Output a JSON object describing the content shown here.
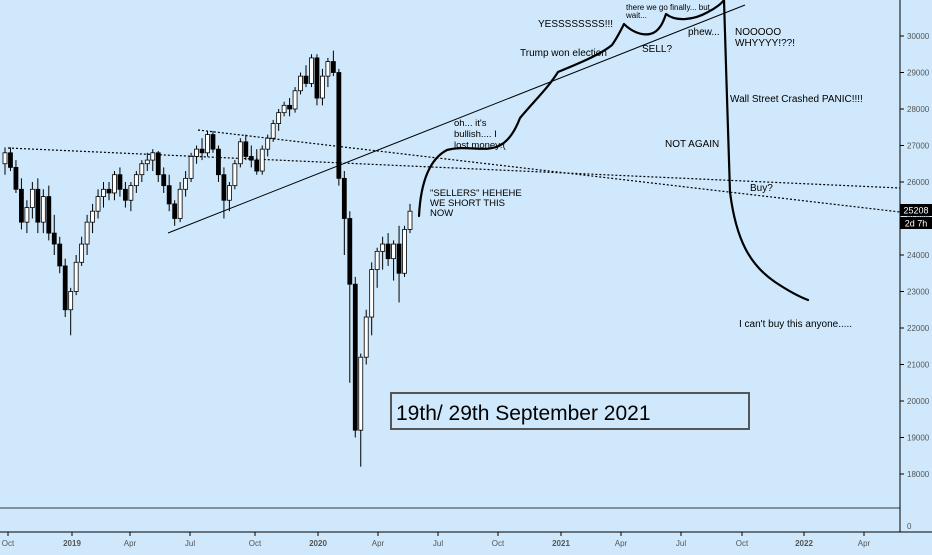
{
  "colors": {
    "background": "#cfe8fb",
    "candle_up": "#ffffff",
    "candle_down": "#000000",
    "wick": "#000000",
    "projection": "#000000",
    "price_label_bg": "#000000",
    "price_label_text": "#ffffff",
    "axis_text": "#555555"
  },
  "chart_data": {
    "type": "candlestick",
    "y_axis": {
      "ticks": [
        "30000",
        "29000",
        "28000",
        "27000",
        "26000",
        "25000",
        "24000",
        "23000",
        "22000",
        "21000",
        "20000",
        "19000",
        "18000"
      ],
      "zero_tick": "0",
      "range": [
        17200,
        30900
      ]
    },
    "x_axis": {
      "ticks": [
        "Oct",
        "2019",
        "Apr",
        "Jul",
        "Oct",
        "2020",
        "Apr",
        "Jul",
        "Oct",
        "2021",
        "Apr",
        "Jul",
        "Oct",
        "2022",
        "Apr"
      ]
    },
    "price_label": "25208",
    "countdown_label": "2d 7h",
    "candles": [
      {
        "o": 26500,
        "h": 26950,
        "l": 26200,
        "c": 26800
      },
      {
        "o": 26800,
        "h": 26950,
        "l": 26300,
        "c": 26400
      },
      {
        "o": 26400,
        "h": 26600,
        "l": 25700,
        "c": 25800
      },
      {
        "o": 25800,
        "h": 26100,
        "l": 24700,
        "c": 24900
      },
      {
        "o": 24900,
        "h": 25500,
        "l": 24600,
        "c": 25300
      },
      {
        "o": 25300,
        "h": 26000,
        "l": 25000,
        "c": 25800
      },
      {
        "o": 25800,
        "h": 26100,
        "l": 24600,
        "c": 24900
      },
      {
        "o": 24900,
        "h": 25800,
        "l": 24600,
        "c": 25600
      },
      {
        "o": 25600,
        "h": 25900,
        "l": 24400,
        "c": 24600
      },
      {
        "o": 24600,
        "h": 25100,
        "l": 24000,
        "c": 24300
      },
      {
        "o": 24300,
        "h": 24500,
        "l": 23500,
        "c": 23700
      },
      {
        "o": 23700,
        "h": 23900,
        "l": 22300,
        "c": 22500
      },
      {
        "o": 22500,
        "h": 23100,
        "l": 21800,
        "c": 23000
      },
      {
        "o": 23000,
        "h": 24000,
        "l": 22900,
        "c": 23800
      },
      {
        "o": 23800,
        "h": 24500,
        "l": 23700,
        "c": 24300
      },
      {
        "o": 24300,
        "h": 25100,
        "l": 24000,
        "c": 24900
      },
      {
        "o": 24900,
        "h": 25400,
        "l": 24600,
        "c": 25200
      },
      {
        "o": 25200,
        "h": 25800,
        "l": 25000,
        "c": 25600
      },
      {
        "o": 25600,
        "h": 26000,
        "l": 25300,
        "c": 25800
      },
      {
        "o": 25800,
        "h": 26000,
        "l": 25500,
        "c": 25700
      },
      {
        "o": 25700,
        "h": 26300,
        "l": 25500,
        "c": 26200
      },
      {
        "o": 26200,
        "h": 26400,
        "l": 25600,
        "c": 25800
      },
      {
        "o": 25800,
        "h": 26000,
        "l": 25300,
        "c": 25500
      },
      {
        "o": 25500,
        "h": 26000,
        "l": 25200,
        "c": 25900
      },
      {
        "o": 25900,
        "h": 26300,
        "l": 25700,
        "c": 26200
      },
      {
        "o": 26200,
        "h": 26600,
        "l": 26000,
        "c": 26500
      },
      {
        "o": 26500,
        "h": 26800,
        "l": 26300,
        "c": 26600
      },
      {
        "o": 26600,
        "h": 26900,
        "l": 26300,
        "c": 26800
      },
      {
        "o": 26800,
        "h": 26850,
        "l": 26000,
        "c": 26200
      },
      {
        "o": 26200,
        "h": 26400,
        "l": 25700,
        "c": 25900
      },
      {
        "o": 25900,
        "h": 26200,
        "l": 25200,
        "c": 25400
      },
      {
        "o": 25400,
        "h": 25500,
        "l": 24800,
        "c": 25000
      },
      {
        "o": 25000,
        "h": 26000,
        "l": 24900,
        "c": 25800
      },
      {
        "o": 25800,
        "h": 26300,
        "l": 25600,
        "c": 26100
      },
      {
        "o": 26100,
        "h": 26800,
        "l": 26000,
        "c": 26700
      },
      {
        "o": 26700,
        "h": 27000,
        "l": 26500,
        "c": 26900
      },
      {
        "o": 26900,
        "h": 27200,
        "l": 26600,
        "c": 26800
      },
      {
        "o": 26800,
        "h": 27400,
        "l": 26700,
        "c": 27300
      },
      {
        "o": 27300,
        "h": 27400,
        "l": 26800,
        "c": 26900
      },
      {
        "o": 26900,
        "h": 27000,
        "l": 26000,
        "c": 26200
      },
      {
        "o": 26200,
        "h": 26400,
        "l": 25000,
        "c": 25500
      },
      {
        "o": 25500,
        "h": 26000,
        "l": 25200,
        "c": 25900
      },
      {
        "o": 25900,
        "h": 26600,
        "l": 25800,
        "c": 26500
      },
      {
        "o": 26500,
        "h": 27200,
        "l": 26400,
        "c": 27100
      },
      {
        "o": 27100,
        "h": 27300,
        "l": 26600,
        "c": 26700
      },
      {
        "o": 26700,
        "h": 27000,
        "l": 26400,
        "c": 26600
      },
      {
        "o": 26600,
        "h": 26900,
        "l": 26200,
        "c": 26300
      },
      {
        "o": 26300,
        "h": 27000,
        "l": 26200,
        "c": 26900
      },
      {
        "o": 26900,
        "h": 27300,
        "l": 26700,
        "c": 27200
      },
      {
        "o": 27200,
        "h": 27700,
        "l": 27100,
        "c": 27600
      },
      {
        "o": 27600,
        "h": 28000,
        "l": 27400,
        "c": 27900
      },
      {
        "o": 27900,
        "h": 28200,
        "l": 27800,
        "c": 28100
      },
      {
        "o": 28100,
        "h": 28300,
        "l": 27800,
        "c": 28000
      },
      {
        "o": 28000,
        "h": 28600,
        "l": 27900,
        "c": 28500
      },
      {
        "o": 28500,
        "h": 29000,
        "l": 28400,
        "c": 28900
      },
      {
        "o": 28900,
        "h": 29200,
        "l": 28600,
        "c": 28700
      },
      {
        "o": 28700,
        "h": 29500,
        "l": 28600,
        "c": 29400
      },
      {
        "o": 29400,
        "h": 29500,
        "l": 28100,
        "c": 28300
      },
      {
        "o": 28300,
        "h": 29100,
        "l": 28100,
        "c": 28900
      },
      {
        "o": 28900,
        "h": 29400,
        "l": 28600,
        "c": 29300
      },
      {
        "o": 29300,
        "h": 29600,
        "l": 28900,
        "c": 29000
      },
      {
        "o": 29000,
        "h": 29100,
        "l": 25900,
        "c": 26100
      },
      {
        "o": 26100,
        "h": 26300,
        "l": 24000,
        "c": 25000
      },
      {
        "o": 25000,
        "h": 25200,
        "l": 20500,
        "c": 23200
      },
      {
        "o": 23200,
        "h": 23400,
        "l": 19000,
        "c": 19200
      },
      {
        "o": 19200,
        "h": 21300,
        "l": 18200,
        "c": 21200
      },
      {
        "o": 21200,
        "h": 22500,
        "l": 21000,
        "c": 22300
      },
      {
        "o": 22300,
        "h": 23800,
        "l": 21800,
        "c": 23600
      },
      {
        "o": 23600,
        "h": 24200,
        "l": 23100,
        "c": 24100
      },
      {
        "o": 24100,
        "h": 24500,
        "l": 23600,
        "c": 24300
      },
      {
        "o": 24300,
        "h": 24600,
        "l": 23700,
        "c": 23900
      },
      {
        "o": 23900,
        "h": 24400,
        "l": 23300,
        "c": 24300
      },
      {
        "o": 24300,
        "h": 24800,
        "l": 22700,
        "c": 23500
      },
      {
        "o": 23500,
        "h": 24800,
        "l": 23400,
        "c": 24700
      },
      {
        "o": 24700,
        "h": 25400,
        "l": 24600,
        "c": 25200
      }
    ]
  },
  "annotations": {
    "sellers": "\"SELLERS\" HEHEHE\nWE SHORT THIS\nNOW",
    "bullish": "oh... it's\nbullish.... I\nlost money:(",
    "trump": "Trump won election",
    "yes": "YESSSSSSSS!!!",
    "finally": "there we go finally... but\nwait...",
    "sell": "SELL?",
    "phew": "phew...",
    "noooo": "NOOOOO\nWHYYYY!??!",
    "crashed": "Wall Street Crashed  PANIC!!!!",
    "not_again": "NOT AGAIN",
    "buy": "Buy?",
    "cant_buy": "I can't buy this anyone.....",
    "date_box": "19th/ 29th  September 2021"
  }
}
